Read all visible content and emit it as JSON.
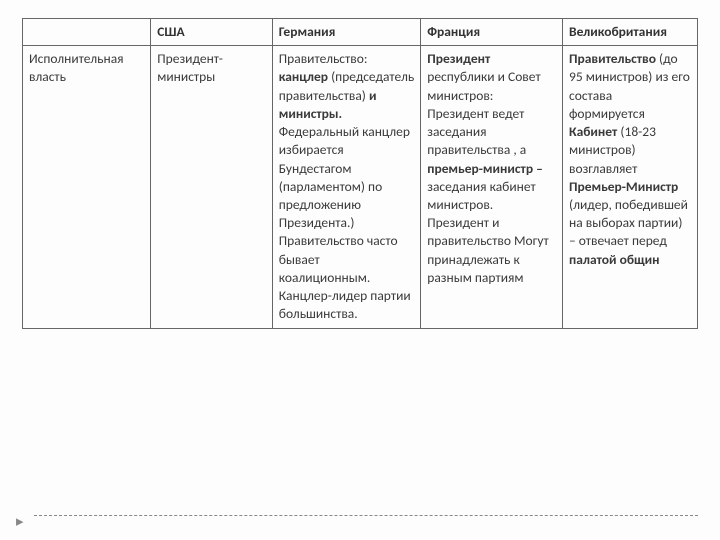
{
  "table": {
    "columns": [
      "США",
      "Германия",
      "Франция",
      "Великобритания"
    ],
    "row_label": "Исполнительная власть",
    "cells": {
      "usa": [
        {
          "text": "Президент- министры",
          "bold": false
        }
      ],
      "germany": [
        {
          "text": "Правительство: ",
          "bold": false
        },
        {
          "text": "канцлер",
          "bold": true
        },
        {
          "text": " (председатель правительства) ",
          "bold": false
        },
        {
          "text": "и министры.",
          "bold": true
        },
        {
          "text": " Федеральный канцлер избирается Бундестагом (парламентом) по предложению Президента.) Правительство часто бывает коалиционным. Канцлер-лидер партии большинства.",
          "bold": false
        }
      ],
      "france": [
        {
          "text": "Президент",
          "bold": true
        },
        {
          "text": " республики и Совет министров: Президент ведет заседания правительства , а ",
          "bold": false
        },
        {
          "text": "премьер-министр –",
          "bold": true
        },
        {
          "text": " заседания кабинет министров. Президент и правительство Могут принадлежать к разным партиям",
          "bold": false
        }
      ],
      "uk": [
        {
          "text": "Правительство",
          "bold": true
        },
        {
          "text": " (до 95 министров) из его состава формируется ",
          "bold": false
        },
        {
          "text": "Кабинет",
          "bold": true
        },
        {
          "text": " (18-23 министров) возглавляет ",
          "bold": false
        },
        {
          "text": "Премьер-Министр",
          "bold": true
        },
        {
          "text": " (лидер, победившей на выборах партии) – отвечает перед ",
          "bold": false
        },
        {
          "text": "палатой общин",
          "bold": true
        }
      ]
    }
  },
  "styling": {
    "background_color": "#fdfdfd",
    "border_color": "#666666",
    "text_color": "#3a3a3a",
    "dash_color": "#888888",
    "arrow_color": "#888888",
    "font_size": 13.5,
    "column_widths_pct": [
      19,
      18,
      22,
      21,
      20
    ]
  }
}
